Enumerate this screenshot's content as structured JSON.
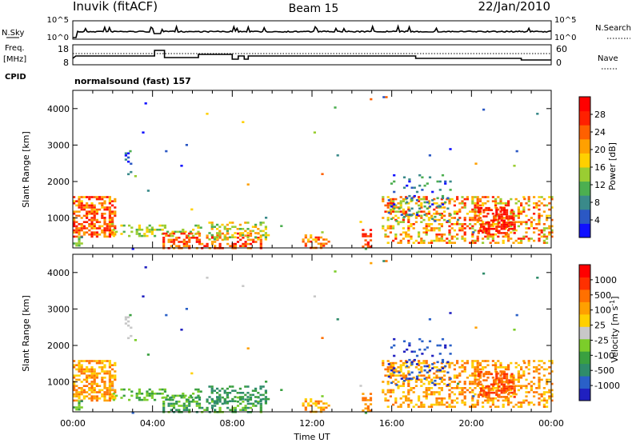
{
  "header": {
    "station": "Inuvik (fitACF)",
    "beam": "Beam 15",
    "date": "22/Jan/2010"
  },
  "nsky_panel": {
    "left_label": "N.Sky",
    "right_label": "N.Search",
    "left_ticks": [
      "10^5",
      "10^0"
    ],
    "right_ticks": [
      "10^5",
      "10^0"
    ]
  },
  "freq_panel": {
    "left_label_line1": "Freq.",
    "left_label_line2": "[MHz]",
    "right_label": "Nave",
    "left_ticks": [
      "18",
      "8"
    ],
    "right_ticks": [
      "60",
      "0"
    ],
    "cpid_label": "CPID",
    "cpid_text": "normalsound (fast) 157"
  },
  "chart_data": [
    {
      "type": "heatmap",
      "name": "power",
      "xlabel": "",
      "ylabel": "Slant Range [km]",
      "x_range": [
        0,
        24
      ],
      "y_range": [
        180,
        4500
      ],
      "y_ticks": [
        "1000",
        "2000",
        "3000",
        "4000"
      ],
      "colorbar": {
        "label": "Power [dB]",
        "colors": [
          "#1010ff",
          "#2b58c4",
          "#3a8a8a",
          "#4caf50",
          "#9acd32",
          "#ffd000",
          "#ffa000",
          "#ff6000",
          "#ff2000",
          "#ff0000"
        ],
        "ticks": [
          "4",
          "8",
          "12",
          "16",
          "20",
          "24",
          "28"
        ]
      }
    },
    {
      "type": "heatmap",
      "name": "velocity",
      "xlabel": "Time UT",
      "ylabel": "Slant Range [km]",
      "x_range": [
        0,
        24
      ],
      "y_range": [
        180,
        4500
      ],
      "y_ticks": [
        "1000",
        "2000",
        "3000",
        "4000"
      ],
      "x_ticks": [
        "00:00",
        "04:00",
        "08:00",
        "12:00",
        "16:00",
        "20:00",
        "00:00"
      ],
      "colorbar": {
        "label": "Velocity [m s",
        "label_sup": "-1",
        "label_end": "]",
        "colors": [
          "#2020c0",
          "#2a60c8",
          "#2f8c6a",
          "#3aa040",
          "#7ccd2a",
          "#c8c8c8",
          "#ffd000",
          "#ffa000",
          "#ff7000",
          "#ff3000",
          "#ff0000"
        ],
        "ticks": [
          "1000",
          "500",
          "100",
          "25",
          "-25",
          "-100",
          "-500",
          "-1000"
        ]
      }
    }
  ]
}
